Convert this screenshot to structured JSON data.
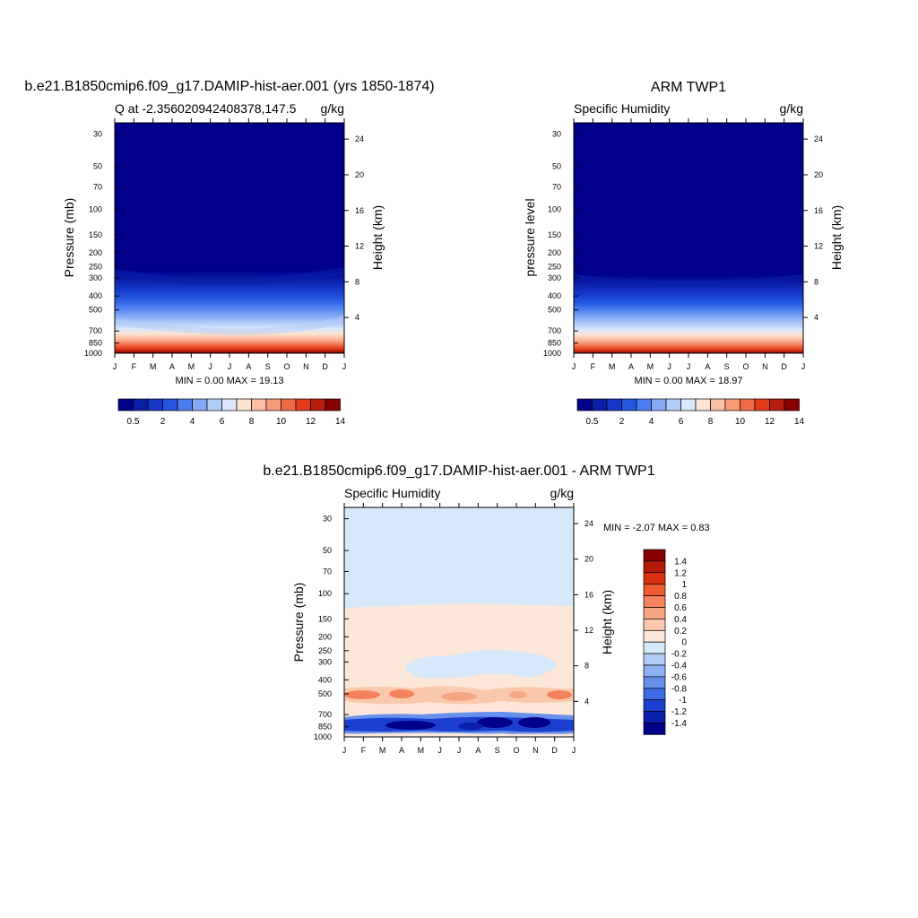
{
  "months": [
    "J",
    "F",
    "M",
    "A",
    "M",
    "J",
    "J",
    "A",
    "S",
    "O",
    "N",
    "D",
    "J"
  ],
  "pressure_ticks": [
    "30",
    "50",
    "70",
    "100",
    "150",
    "200",
    "250",
    "300",
    "400",
    "500",
    "700",
    "850",
    "1000"
  ],
  "height_ticks": [
    "24",
    "20",
    "16",
    "12",
    "8",
    "4"
  ],
  "panel1": {
    "title": "b.e21.B1850cmip6.f09_g17.DAMIP-hist-aer.001 (yrs 1850-1874)",
    "left_string": "Q at -2.356020942408378,147.5",
    "right_string": "g/kg",
    "ylabel": "Pressure (mb)",
    "ylabel_right": "Height (km)",
    "minmax": "MIN =   0.00 MAX =  19.13",
    "colorbar_labels": [
      "0.5",
      "2",
      "4",
      "6",
      "8",
      "10",
      "12",
      "14"
    ]
  },
  "panel2": {
    "title": "ARM TWP1",
    "left_string": "Specific Humidity",
    "right_string": "g/kg",
    "ylabel": "pressure level",
    "ylabel_right": "Height (km)",
    "minmax": "MIN =   0.00 MAX =  18.97",
    "colorbar_labels": [
      "0.5",
      "2",
      "4",
      "6",
      "8",
      "10",
      "12",
      "14"
    ]
  },
  "panel3": {
    "title": "b.e21.B1850cmip6.f09_g17.DAMIP-hist-aer.001 - ARM TWP1",
    "left_string": "Specific Humidity",
    "right_string": "g/kg",
    "ylabel": "Pressure (mb)",
    "ylabel_right": "Height (km)",
    "minmax": "MIN =  -2.07 MAX =   0.83",
    "colorbar_labels": [
      "1.4",
      "1.2",
      "1",
      "0.8",
      "0.6",
      "0.4",
      "0.2",
      "0",
      "-0.2",
      "-0.4",
      "-0.6",
      "-0.8",
      "-1",
      "-1.2",
      "-1.4"
    ]
  },
  "colors": {
    "q_levels": [
      "#00008a",
      "#0a1ea8",
      "#1437c8",
      "#2456e0",
      "#4a7ef0",
      "#86aaf6",
      "#b4ccf8",
      "#dbe8fb",
      "#fde3d2",
      "#fbc0a4",
      "#f79a78",
      "#f06a48",
      "#e43a1c",
      "#b81c0a",
      "#880000"
    ],
    "diff_levels": [
      "#880000",
      "#b21a06",
      "#dd320f",
      "#ef5a2f",
      "#f4825c",
      "#f7a684",
      "#f9c8ad",
      "#fde7d8",
      "#d6e8fb",
      "#b0cdf6",
      "#8cb0f2",
      "#6690ec",
      "#3e6ae4",
      "#1c3fd0",
      "#0a1eab",
      "#00008a"
    ]
  },
  "chart_data": [
    {
      "type": "heatmap",
      "title": "b.e21.B1850cmip6.f09_g17.DAMIP-hist-aer.001 (yrs 1850-1874)",
      "x": [
        "J",
        "F",
        "M",
        "A",
        "M",
        "J",
        "J",
        "A",
        "S",
        "O",
        "N",
        "D",
        "J"
      ],
      "y_pressure_mb": [
        1000,
        850,
        700,
        500,
        400,
        300,
        250,
        200,
        150,
        100,
        70,
        50,
        30
      ],
      "xlabel": "",
      "ylabel": "Pressure (mb)",
      "units": "g/kg",
      "min": 0.0,
      "max": 19.13,
      "levels": [
        0.5,
        1,
        2,
        3,
        4,
        5,
        6,
        7,
        8,
        9,
        10,
        11,
        12,
        13,
        14
      ],
      "approx_profile_gkg_by_pressure": {
        "1000": 18.5,
        "850": 14,
        "700": 9,
        "600": 6,
        "500": 4,
        "400": 2,
        "300": 0.5,
        "250": 0.2
      }
    },
    {
      "type": "heatmap",
      "title": "ARM TWP1",
      "x": [
        "J",
        "F",
        "M",
        "A",
        "M",
        "J",
        "J",
        "A",
        "S",
        "O",
        "N",
        "D",
        "J"
      ],
      "y_pressure_mb": [
        1000,
        850,
        700,
        500,
        400,
        300,
        250,
        200,
        150,
        100,
        70,
        50,
        30
      ],
      "xlabel": "",
      "ylabel": "pressure level",
      "units": "g/kg",
      "min": 0.0,
      "max": 18.97,
      "levels": [
        0.5,
        1,
        2,
        3,
        4,
        5,
        6,
        7,
        8,
        9,
        10,
        11,
        12,
        13,
        14
      ],
      "approx_profile_gkg_by_pressure": {
        "1000": 18.5,
        "850": 14,
        "700": 9,
        "600": 6,
        "500": 4,
        "400": 2,
        "300": 0.5,
        "250": 0.2
      }
    },
    {
      "type": "heatmap",
      "title": "b.e21.B1850cmip6.f09_g17.DAMIP-hist-aer.001 - ARM TWP1",
      "x": [
        "J",
        "F",
        "M",
        "A",
        "M",
        "J",
        "J",
        "A",
        "S",
        "O",
        "N",
        "D",
        "J"
      ],
      "y_pressure_mb": [
        1000,
        850,
        700,
        500,
        400,
        300,
        250,
        200,
        150,
        100,
        70,
        50,
        30
      ],
      "xlabel": "",
      "ylabel": "Pressure (mb)",
      "units": "g/kg",
      "min": -2.07,
      "max": 0.83,
      "levels": [
        -1.4,
        -1.2,
        -1,
        -0.8,
        -0.6,
        -0.4,
        -0.2,
        0,
        0.2,
        0.4,
        0.6,
        0.8,
        1,
        1.2,
        1.4
      ],
      "approx_features": {
        "above_130mb": -0.1,
        "130_to_600mb": 0.1,
        "450_to_320mb_patch": -0.1,
        "around_500mb": 0.5,
        "around_850mb": -1.3,
        "near_1000mb": 0.1
      }
    }
  ]
}
